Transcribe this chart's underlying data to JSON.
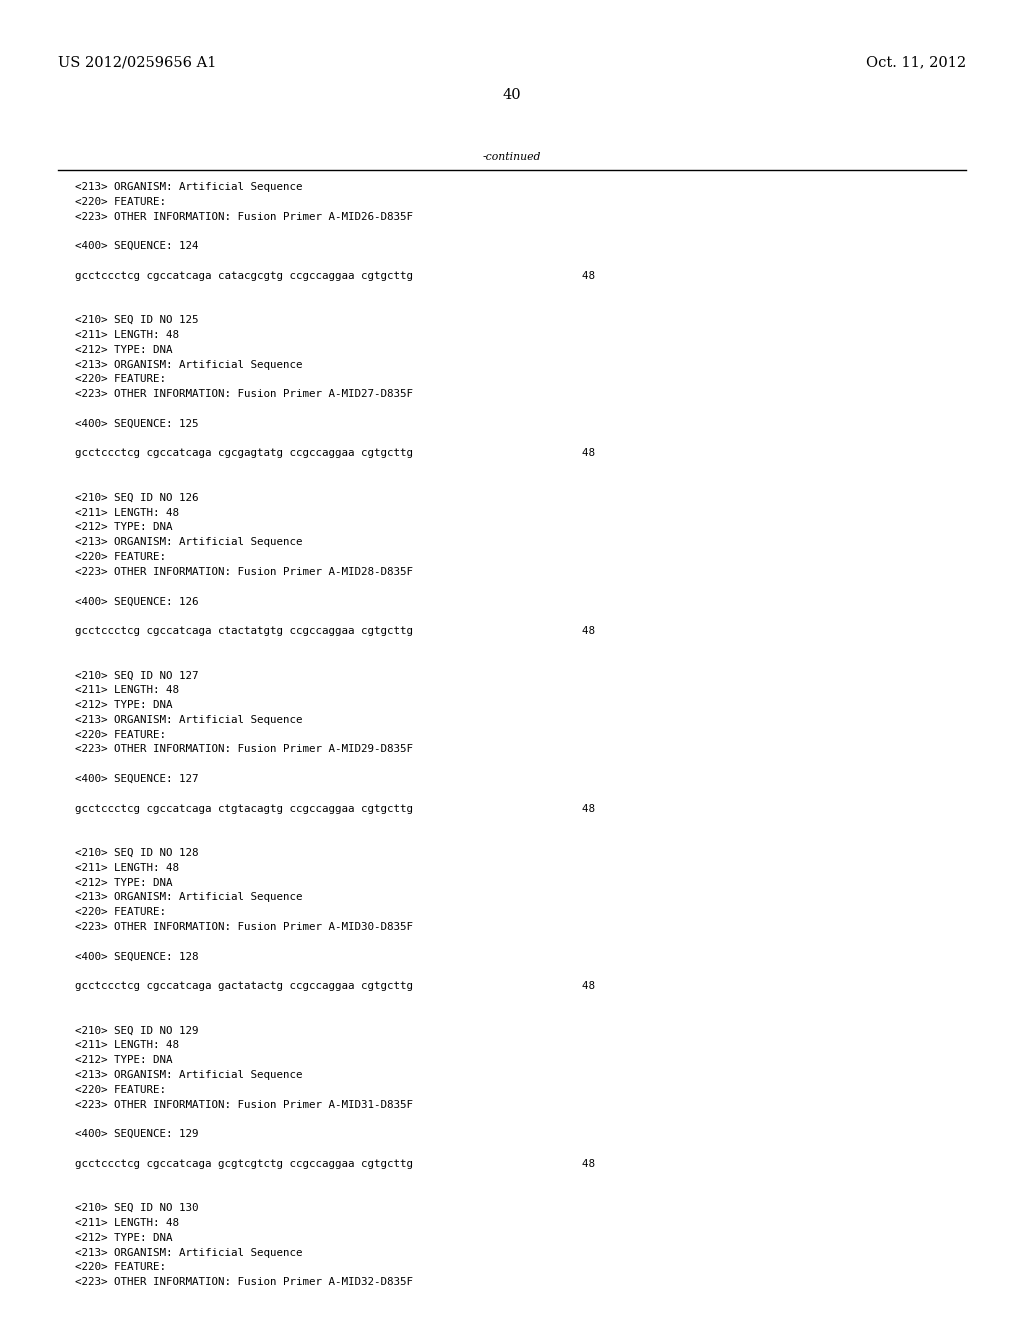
{
  "background_color": "#ffffff",
  "header_left": "US 2012/0259656 A1",
  "header_right": "Oct. 11, 2012",
  "page_number": "40",
  "continued_label": "-continued",
  "font_size_header": 10.5,
  "font_size_body": 7.8,
  "font_size_page": 10.5,
  "monospace_font": "DejaVu Sans Mono",
  "serif_font": "DejaVu Serif",
  "content_lines": [
    "<213> ORGANISM: Artificial Sequence",
    "<220> FEATURE:",
    "<223> OTHER INFORMATION: Fusion Primer A-MID26-D835F",
    "",
    "<400> SEQUENCE: 124",
    "",
    "gcctccctcg cgccatcaga catacgcgtg ccgccaggaa cgtgcttg                          48",
    "",
    "",
    "<210> SEQ ID NO 125",
    "<211> LENGTH: 48",
    "<212> TYPE: DNA",
    "<213> ORGANISM: Artificial Sequence",
    "<220> FEATURE:",
    "<223> OTHER INFORMATION: Fusion Primer A-MID27-D835F",
    "",
    "<400> SEQUENCE: 125",
    "",
    "gcctccctcg cgccatcaga cgcgagtatg ccgccaggaa cgtgcttg                          48",
    "",
    "",
    "<210> SEQ ID NO 126",
    "<211> LENGTH: 48",
    "<212> TYPE: DNA",
    "<213> ORGANISM: Artificial Sequence",
    "<220> FEATURE:",
    "<223> OTHER INFORMATION: Fusion Primer A-MID28-D835F",
    "",
    "<400> SEQUENCE: 126",
    "",
    "gcctccctcg cgccatcaga ctactatgtg ccgccaggaa cgtgcttg                          48",
    "",
    "",
    "<210> SEQ ID NO 127",
    "<211> LENGTH: 48",
    "<212> TYPE: DNA",
    "<213> ORGANISM: Artificial Sequence",
    "<220> FEATURE:",
    "<223> OTHER INFORMATION: Fusion Primer A-MID29-D835F",
    "",
    "<400> SEQUENCE: 127",
    "",
    "gcctccctcg cgccatcaga ctgtacagtg ccgccaggaa cgtgcttg                          48",
    "",
    "",
    "<210> SEQ ID NO 128",
    "<211> LENGTH: 48",
    "<212> TYPE: DNA",
    "<213> ORGANISM: Artificial Sequence",
    "<220> FEATURE:",
    "<223> OTHER INFORMATION: Fusion Primer A-MID30-D835F",
    "",
    "<400> SEQUENCE: 128",
    "",
    "gcctccctcg cgccatcaga gactatactg ccgccaggaa cgtgcttg                          48",
    "",
    "",
    "<210> SEQ ID NO 129",
    "<211> LENGTH: 48",
    "<212> TYPE: DNA",
    "<213> ORGANISM: Artificial Sequence",
    "<220> FEATURE:",
    "<223> OTHER INFORMATION: Fusion Primer A-MID31-D835F",
    "",
    "<400> SEQUENCE: 129",
    "",
    "gcctccctcg cgccatcaga gcgtcgtctg ccgccaggaa cgtgcttg                          48",
    "",
    "",
    "<210> SEQ ID NO 130",
    "<211> LENGTH: 48",
    "<212> TYPE: DNA",
    "<213> ORGANISM: Artificial Sequence",
    "<220> FEATURE:",
    "<223> OTHER INFORMATION: Fusion Primer A-MID32-D835F"
  ]
}
